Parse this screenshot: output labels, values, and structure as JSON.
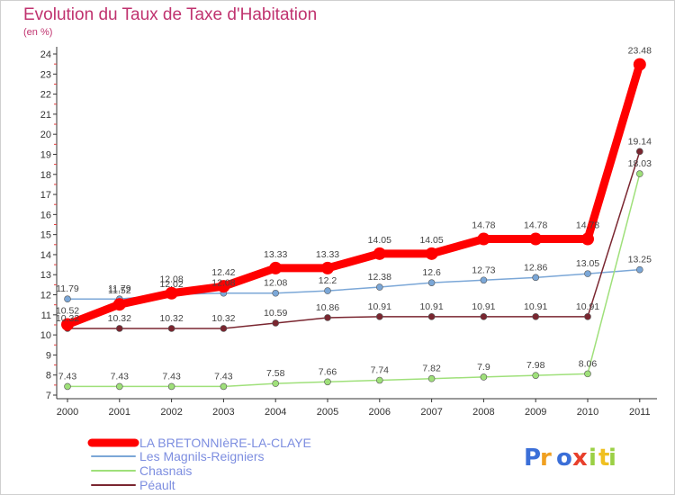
{
  "title": "Evolution du Taux de Taxe d'Habitation",
  "unit": "(en %)",
  "logo": "Proxiti",
  "chart_data": {
    "type": "line",
    "title": "Evolution du Taux de Taxe d'Habitation",
    "ylabel": "(en %)",
    "xlabel": "",
    "x": [
      "2000",
      "2001",
      "2002",
      "2003",
      "2004",
      "2005",
      "2006",
      "2007",
      "2008",
      "2009",
      "2010",
      "2011"
    ],
    "ylim": [
      7,
      24
    ],
    "yticks": [
      "7",
      "8",
      "9",
      "10",
      "11",
      "12",
      "13",
      "14",
      "15",
      "16",
      "17",
      "18",
      "19",
      "20",
      "21",
      "22",
      "23",
      "24"
    ],
    "grid": false,
    "legend": "bottom-left",
    "series": [
      {
        "name": "LA BRETONNIèRE-LA-CLAYE",
        "color": "#ff0000",
        "values": [
          10.52,
          11.52,
          12.08,
          12.42,
          13.33,
          13.33,
          14.05,
          14.05,
          14.78,
          14.78,
          14.78,
          23.48
        ],
        "labels": [
          "10.52",
          "11.52",
          "12.08",
          "12.42",
          "13.33",
          "13.33",
          "14.05",
          "14.05",
          "14.78",
          "14.78",
          "14.78",
          "23.48"
        ]
      },
      {
        "name": "Les Magnils-Reigniers",
        "color": "#7ba7d7",
        "values": [
          11.79,
          11.79,
          12.02,
          12.08,
          12.08,
          12.2,
          12.38,
          12.6,
          12.73,
          12.86,
          13.05,
          13.25
        ],
        "labels": [
          "11.79",
          "11.79",
          "12.02",
          "12.08",
          "12.08",
          "12.2",
          "12.38",
          "12.6",
          "12.73",
          "12.86",
          "13.05",
          "13.25"
        ]
      },
      {
        "name": "Chasnais",
        "color": "#9fe07a",
        "values": [
          7.43,
          7.43,
          7.43,
          7.43,
          7.58,
          7.66,
          7.74,
          7.82,
          7.9,
          7.98,
          8.06,
          18.03
        ],
        "labels": [
          "7.43",
          "7.43",
          "7.43",
          "7.43",
          "7.58",
          "7.66",
          "7.74",
          "7.82",
          "7.9",
          "7.98",
          "8.06",
          "18.03"
        ]
      },
      {
        "name": "Péault",
        "color": "#7a2630",
        "values": [
          10.32,
          10.32,
          10.32,
          10.32,
          10.59,
          10.86,
          10.91,
          10.91,
          10.91,
          10.91,
          10.91,
          19.14
        ],
        "labels": [
          "10.32",
          "10.32",
          "10.32",
          "10.32",
          "10.59",
          "10.86",
          "10.91",
          "10.91",
          "10.91",
          "10.91",
          "10.91",
          "19.14"
        ]
      }
    ]
  }
}
